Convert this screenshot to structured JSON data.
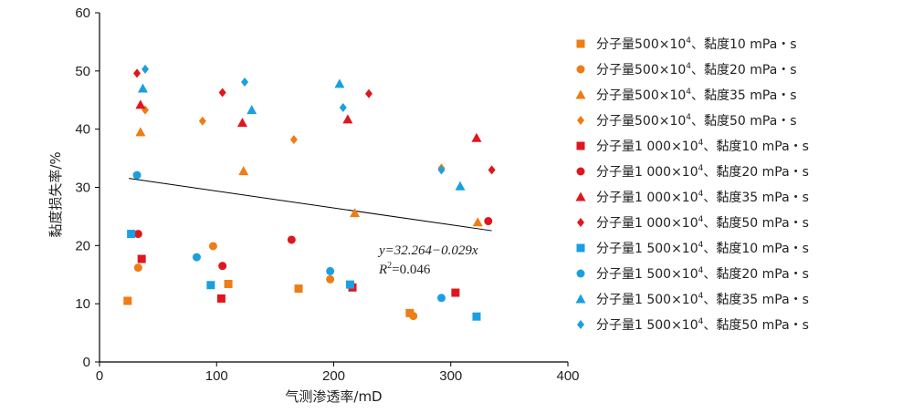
{
  "chart_data": {
    "type": "scatter",
    "xlabel": "气测渗透率/mD",
    "ylabel": "黏度损失率/%",
    "xlim": [
      0,
      400
    ],
    "ylim": [
      0,
      60
    ],
    "xticks": [
      "0",
      "100",
      "200",
      "300",
      "400"
    ],
    "yticks": [
      "0",
      "10",
      "20",
      "30",
      "40",
      "50",
      "60"
    ],
    "grid": false,
    "legend_position": "right",
    "colors": {
      "orange": "#ed7d14",
      "red": "#e0161e",
      "blue": "#1aa0e0"
    },
    "series": [
      {
        "prefix": "分子量500×10",
        "sup": "4",
        "suffix": "、黏度10 mPa・s",
        "color": "#ed7d14",
        "marker": "square",
        "points": [
          [
            24,
            10.5
          ],
          [
            110,
            13.4
          ],
          [
            170,
            12.6
          ],
          [
            265,
            8.4
          ]
        ]
      },
      {
        "prefix": "分子量500×10",
        "sup": "4",
        "suffix": "、黏度20 mPa・s",
        "color": "#ed7d14",
        "marker": "circle",
        "points": [
          [
            33,
            16.2
          ],
          [
            97,
            19.9
          ],
          [
            197,
            14.2
          ],
          [
            268,
            7.9
          ]
        ]
      },
      {
        "prefix": "分子量500×10",
        "sup": "4",
        "suffix": "、黏度35 mPa・s",
        "color": "#ed7d14",
        "marker": "triangle",
        "points": [
          [
            35,
            39.5
          ],
          [
            123,
            32.8
          ],
          [
            218,
            25.6
          ],
          [
            323,
            24.0
          ]
        ]
      },
      {
        "prefix": "分子量500×10",
        "sup": "4",
        "suffix": "、黏度50 mPa・s",
        "color": "#ed7d14",
        "marker": "diamond",
        "points": [
          [
            39,
            43.3
          ],
          [
            88,
            41.4
          ],
          [
            166,
            38.2
          ],
          [
            292,
            33.3
          ]
        ]
      },
      {
        "prefix": "分子量1 000×10",
        "sup": "4",
        "suffix": "、黏度10 mPa・s",
        "color": "#e0161e",
        "marker": "square",
        "points": [
          [
            36,
            17.7
          ],
          [
            104,
            10.9
          ],
          [
            216,
            12.8
          ],
          [
            304,
            11.9
          ]
        ]
      },
      {
        "prefix": "分子量1 000×10",
        "sup": "4",
        "suffix": "、黏度20 mPa・s",
        "color": "#e0161e",
        "marker": "circle",
        "points": [
          [
            33,
            22.0
          ],
          [
            105,
            16.5
          ],
          [
            164,
            21.0
          ],
          [
            332,
            24.2
          ]
        ]
      },
      {
        "prefix": "分子量1 000×10",
        "sup": "4",
        "suffix": "、黏度35 mPa・s",
        "color": "#e0161e",
        "marker": "triangle",
        "points": [
          [
            35,
            44.2
          ],
          [
            122,
            41.1
          ],
          [
            212,
            41.7
          ],
          [
            322,
            38.5
          ]
        ]
      },
      {
        "prefix": "分子量1 000×10",
        "sup": "4",
        "suffix": "、黏度50 mPa・s",
        "color": "#e0161e",
        "marker": "diamond",
        "points": [
          [
            32,
            49.6
          ],
          [
            105,
            46.3
          ],
          [
            230,
            46.1
          ],
          [
            335,
            33.0
          ]
        ]
      },
      {
        "prefix": "分子量1 500×10",
        "sup": "4",
        "suffix": "、黏度10 mPa・s",
        "color": "#1aa0e0",
        "marker": "square",
        "points": [
          [
            27,
            22.0
          ],
          [
            95,
            13.2
          ],
          [
            214,
            13.3
          ],
          [
            322,
            7.8
          ]
        ]
      },
      {
        "prefix": "分子量1 500×10",
        "sup": "4",
        "suffix": "、黏度20 mPa・s",
        "color": "#1aa0e0",
        "marker": "circle",
        "points": [
          [
            32,
            32.1
          ],
          [
            83,
            18.0
          ],
          [
            197,
            15.6
          ],
          [
            292,
            11.0
          ]
        ]
      },
      {
        "prefix": "分子量1 500×10",
        "sup": "4",
        "suffix": "、黏度35 mPa・s",
        "color": "#1aa0e0",
        "marker": "triangle",
        "points": [
          [
            37,
            47.0
          ],
          [
            130,
            43.3
          ],
          [
            205,
            47.8
          ],
          [
            308,
            30.2
          ]
        ]
      },
      {
        "prefix": "分子量1 500×10",
        "sup": "4",
        "suffix": "、黏度50 mPa・s",
        "color": "#1aa0e0",
        "marker": "diamond",
        "points": [
          [
            39,
            50.3
          ],
          [
            124,
            48.1
          ],
          [
            208,
            43.7
          ],
          [
            292,
            33.0
          ]
        ]
      }
    ],
    "trendline": {
      "x": [
        25,
        335
      ],
      "equation": "y=32.264−0.029x",
      "r2_prefix": "R",
      "r2_sup": "2",
      "r2_suffix": "=0.046"
    }
  }
}
